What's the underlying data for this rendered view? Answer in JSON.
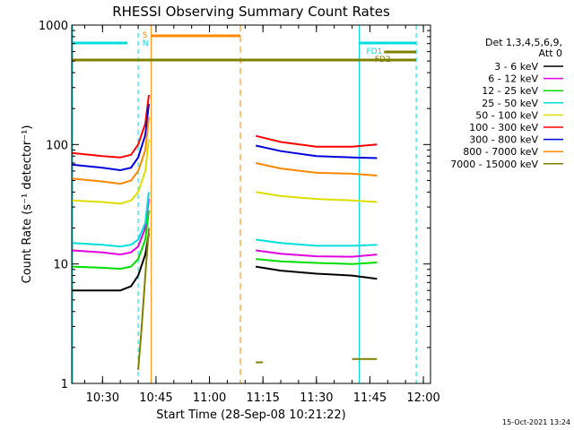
{
  "chart_data": {
    "type": "line",
    "title": "RHESSI Observing Summary Count Rates",
    "xlabel": "Start Time (28-Sep-08 10:21:22)",
    "ylabel": "Count Rate (s⁻¹ detector⁻¹)",
    "yscale": "log",
    "ylim": [
      1,
      1000
    ],
    "xlim": [
      "10:21:22",
      "12:02:00"
    ],
    "x_ticks": [
      "10:30",
      "10:45",
      "11:00",
      "11:15",
      "11:30",
      "11:45",
      "12:00"
    ],
    "y_ticks": [
      "1",
      "10",
      "100",
      "1000"
    ],
    "grid": false,
    "legend_placement": "right",
    "legend_header": [
      "Det 1,3,4,5,6,9,",
      "Att 0"
    ],
    "series": [
      {
        "name": "3 - 6 keV",
        "color": "#000000",
        "segments": [
          {
            "x": [
              "10:21:22",
              "10:30",
              "10:35",
              "10:38",
              "10:40",
              "10:42",
              "10:43"
            ],
            "y": [
              6,
              6,
              6,
              6.5,
              8,
              12,
              18
            ]
          },
          {
            "x": [
              "11:13",
              "11:20",
              "11:30",
              "11:40",
              "11:47"
            ],
            "y": [
              9.5,
              8.8,
              8.3,
              8,
              7.5
            ]
          }
        ]
      },
      {
        "name": "6 - 12 keV",
        "color": "#e000e0",
        "segments": [
          {
            "x": [
              "10:21:22",
              "10:30",
              "10:35",
              "10:38",
              "10:40",
              "10:42",
              "10:43"
            ],
            "y": [
              13,
              12.5,
              12,
              12.5,
              14,
              20,
              35
            ]
          },
          {
            "x": [
              "11:13",
              "11:20",
              "11:30",
              "11:40",
              "11:47"
            ],
            "y": [
              13,
              12.2,
              11.6,
              11.5,
              12
            ]
          }
        ]
      },
      {
        "name": "12 - 25 keV",
        "color": "#00dd00",
        "segments": [
          {
            "x": [
              "10:21:22",
              "10:30",
              "10:35",
              "10:38",
              "10:40",
              "10:42",
              "10:43"
            ],
            "y": [
              9.5,
              9.3,
              9.1,
              9.5,
              11,
              16,
              28
            ]
          },
          {
            "x": [
              "11:13",
              "11:20",
              "11:30",
              "11:40",
              "11:47"
            ],
            "y": [
              11,
              10.5,
              10.2,
              10,
              10.3
            ]
          }
        ]
      },
      {
        "name": "25 - 50 keV",
        "color": "#00dddd",
        "segments": [
          {
            "x": [
              "10:21:22",
              "10:30",
              "10:35",
              "10:38",
              "10:40",
              "10:42",
              "10:43"
            ],
            "y": [
              15,
              14.5,
              14,
              14.5,
              16,
              22,
              40
            ]
          },
          {
            "x": [
              "11:13",
              "11:20",
              "11:30",
              "11:40",
              "11:47"
            ],
            "y": [
              16,
              15,
              14.2,
              14.2,
              14.5
            ]
          }
        ]
      },
      {
        "name": "50 - 100 keV",
        "color": "#dddd00",
        "segments": [
          {
            "x": [
              "10:21:22",
              "10:30",
              "10:35",
              "10:38",
              "10:40",
              "10:42",
              "10:43"
            ],
            "y": [
              34,
              33,
              32,
              34,
              40,
              60,
              110
            ]
          },
          {
            "x": [
              "11:13",
              "11:20",
              "11:30",
              "11:40",
              "11:47"
            ],
            "y": [
              40,
              37,
              35,
              34,
              33
            ]
          }
        ]
      },
      {
        "name": "100 - 300 keV",
        "color": "#ff0000",
        "segments": [
          {
            "x": [
              "10:21:22",
              "10:30",
              "10:35",
              "10:38",
              "10:40",
              "10:42",
              "10:43"
            ],
            "y": [
              85,
              80,
              78,
              82,
              100,
              150,
              260
            ]
          },
          {
            "x": [
              "11:13",
              "11:20",
              "11:30",
              "11:40",
              "11:47"
            ],
            "y": [
              118,
              105,
              96,
              96,
              100
            ]
          }
        ]
      },
      {
        "name": "300 - 800 keV",
        "color": "#0000dd",
        "segments": [
          {
            "x": [
              "10:21:22",
              "10:30",
              "10:35",
              "10:38",
              "10:40",
              "10:42",
              "10:43"
            ],
            "y": [
              68,
              64,
              61,
              64,
              78,
              120,
              220
            ]
          },
          {
            "x": [
              "11:13",
              "11:20",
              "11:30",
              "11:40",
              "11:47"
            ],
            "y": [
              98,
              88,
              80,
              78,
              77
            ]
          }
        ]
      },
      {
        "name": "800 - 7000 keV",
        "color": "#ff8800",
        "segments": [
          {
            "x": [
              "10:21:22",
              "10:30",
              "10:35",
              "10:38",
              "10:40",
              "10:42",
              "10:43"
            ],
            "y": [
              52,
              49,
              47,
              50,
              60,
              90,
              170
            ]
          },
          {
            "x": [
              "11:13",
              "11:20",
              "11:30",
              "11:40",
              "11:47"
            ],
            "y": [
              70,
              63,
              58,
              57,
              55
            ]
          }
        ]
      },
      {
        "name": "7000 - 15000 keV",
        "color": "#808000",
        "segments": [
          {
            "x": [
              "10:40",
              "10:41",
              "10:42",
              "10:43"
            ],
            "y": [
              1.3,
              3,
              8,
              20
            ]
          },
          {
            "x": [
              "11:13",
              "11:15"
            ],
            "y": [
              1.5,
              1.5
            ]
          },
          {
            "x": [
              "11:40",
              "11:47"
            ],
            "y": [
              1.6,
              1.6
            ]
          }
        ]
      }
    ],
    "annotations": [
      {
        "label": "S",
        "color": "#ff8800"
      },
      {
        "label": "N",
        "color": "#00dddd"
      },
      {
        "label": "FD1",
        "color": "#00dddd"
      },
      {
        "label": "FD2",
        "color": "#808000"
      }
    ],
    "timestamp": "15-Oct-2021 13:24"
  }
}
